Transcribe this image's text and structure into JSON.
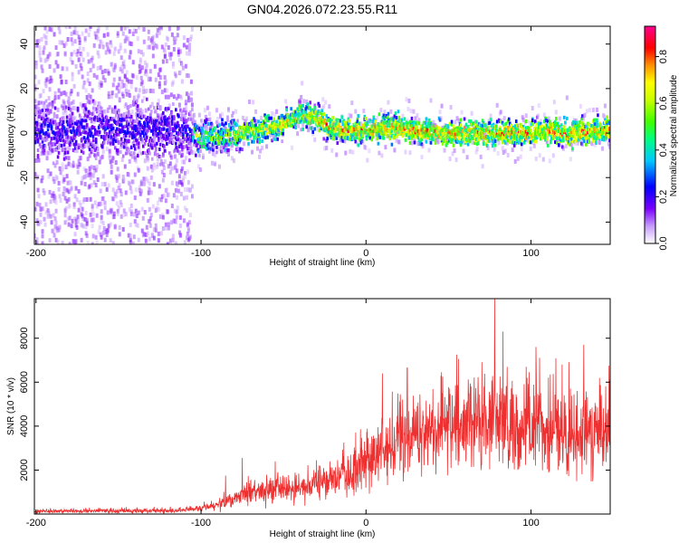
{
  "title": "GN04.2026.072.23.55.R11",
  "colors": {
    "background": "#ffffff",
    "axis": "#000000",
    "snr_line": "#ef3030",
    "colormap": [
      "#ffffff",
      "#7a00ff",
      "#0000ff",
      "#00e0ff",
      "#00ff40",
      "#ffff00",
      "#ff8000",
      "#ff0000",
      "#ff0090"
    ]
  },
  "chart_data": [
    {
      "type": "heatmap",
      "xlabel": "Height of straight line (km)",
      "ylabel": "Frequency (Hz)",
      "xlim": [
        -201,
        148
      ],
      "ylim": [
        -50,
        48
      ],
      "x_ticks": [
        -200,
        -100,
        0,
        100
      ],
      "y_ticks": [
        -40,
        -20,
        0,
        20,
        40
      ],
      "grid": false,
      "colorbar": {
        "label": "Normalized spectral amplitude",
        "range": [
          0,
          0.93
        ],
        "ticks": [
          0.0,
          0.2,
          0.4,
          0.6,
          0.8
        ]
      },
      "ridge": {
        "x": [
          -201,
          -180,
          -160,
          -140,
          -120,
          -105,
          -100,
          -90,
          -80,
          -70,
          -60,
          -50,
          -40,
          -35,
          -30,
          -25,
          -20,
          -10,
          0,
          10,
          20,
          30,
          40,
          50,
          60,
          70,
          80,
          90,
          100,
          110,
          120,
          130,
          140,
          148
        ],
        "y": [
          1,
          1,
          2,
          1,
          2,
          0,
          -2,
          -2,
          -1,
          1,
          2,
          4,
          8,
          8,
          7,
          4,
          2,
          1,
          2,
          2,
          2,
          1,
          1,
          0,
          0,
          0,
          0,
          0,
          0,
          1,
          0,
          0,
          1,
          2
        ]
      }
    },
    {
      "type": "line",
      "xlabel": "Height of straight line (km)",
      "ylabel": "SNR (10 * v/v)",
      "xlim": [
        -201,
        148
      ],
      "ylim": [
        0,
        9800
      ],
      "x_ticks": [
        -200,
        -100,
        0,
        100
      ],
      "y_ticks": [
        2000,
        4000,
        6000,
        8000
      ],
      "grid": false,
      "series": [
        {
          "envelope": {
            "x": [
              -201,
              -150,
              -110,
              -100,
              -90,
              -80,
              -70,
              -60,
              -50,
              -40,
              -30,
              -20,
              -10,
              0,
              10,
              20,
              30,
              40,
              50,
              60,
              70,
              80,
              90,
              100,
              110,
              120,
              130,
              140,
              148
            ],
            "mean": [
              120,
              140,
              170,
              280,
              420,
              720,
              950,
              1000,
              1150,
              1200,
              1350,
              1600,
              1900,
              2400,
              2900,
              3300,
              3600,
              3800,
              3900,
              4050,
              4100,
              4150,
              4000,
              3950,
              3800,
              3700,
              3600,
              3600,
              3600
            ],
            "spread": [
              80,
              90,
              100,
              120,
              200,
              350,
              450,
              450,
              500,
              550,
              650,
              750,
              900,
              1100,
              1300,
              1500,
              1600,
              1700,
              1750,
              1800,
              1900,
              2000,
              1900,
              1850,
              1800,
              1750,
              1700,
              1700,
              1700
            ],
            "peaks": [
              [
                -85,
                1750
              ],
              [
                -75,
                2550
              ],
              [
                -55,
                2400
              ],
              [
                -30,
                2450
              ],
              [
                10,
                6400
              ],
              [
                25,
                6650
              ],
              [
                55,
                7250
              ],
              [
                78,
                9850
              ],
              [
                83,
                8300
              ],
              [
                103,
                7600
              ],
              [
                132,
                7700
              ],
              [
                142,
                5850
              ]
            ]
          }
        }
      ]
    }
  ]
}
